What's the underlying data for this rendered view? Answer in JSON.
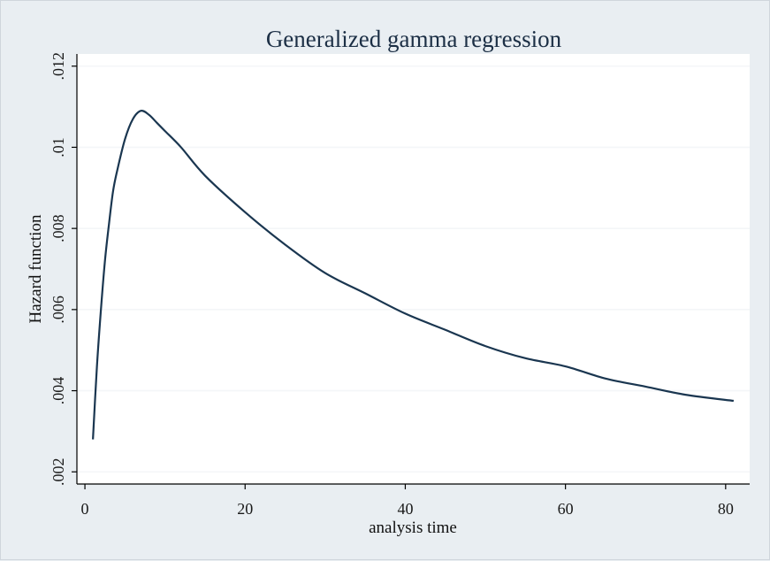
{
  "chart_data": {
    "type": "line",
    "title": "Generalized gamma regression",
    "xlabel": "analysis time",
    "ylabel": "Hazard function",
    "xlim": [
      -1,
      83
    ],
    "ylim": [
      0.0017,
      0.0123
    ],
    "xticks": [
      0,
      20,
      40,
      60,
      80
    ],
    "xtick_labels": [
      "0",
      "20",
      "40",
      "60",
      "80"
    ],
    "yticks": [
      0.002,
      0.004,
      0.006,
      0.008,
      0.01,
      0.012
    ],
    "ytick_labels": [
      ".002",
      ".004",
      ".006",
      ".008",
      ".01",
      ".012"
    ],
    "grid": true,
    "legend": "none",
    "colors": {
      "line": "#1a3650",
      "grid": "#f4f6f8",
      "plot_background": "#ffffff",
      "outer_background": "#e9eef2"
    },
    "series": [
      {
        "x": [
          1,
          1.5,
          2,
          2.5,
          3,
          3.5,
          4,
          5,
          6,
          7,
          8,
          9,
          10,
          12,
          15,
          20,
          25,
          30,
          35,
          40,
          45,
          50,
          55,
          60,
          65,
          70,
          75,
          81
        ],
        "y": [
          0.0028,
          0.0046,
          0.006,
          0.0072,
          0.0081,
          0.0089,
          0.0094,
          0.0102,
          0.0107,
          0.0109,
          0.0108,
          0.0106,
          0.0104,
          0.01,
          0.0093,
          0.0084,
          0.0076,
          0.0069,
          0.0064,
          0.0059,
          0.0055,
          0.0051,
          0.0048,
          0.0046,
          0.0043,
          0.0041,
          0.0039,
          0.00375
        ]
      }
    ]
  }
}
